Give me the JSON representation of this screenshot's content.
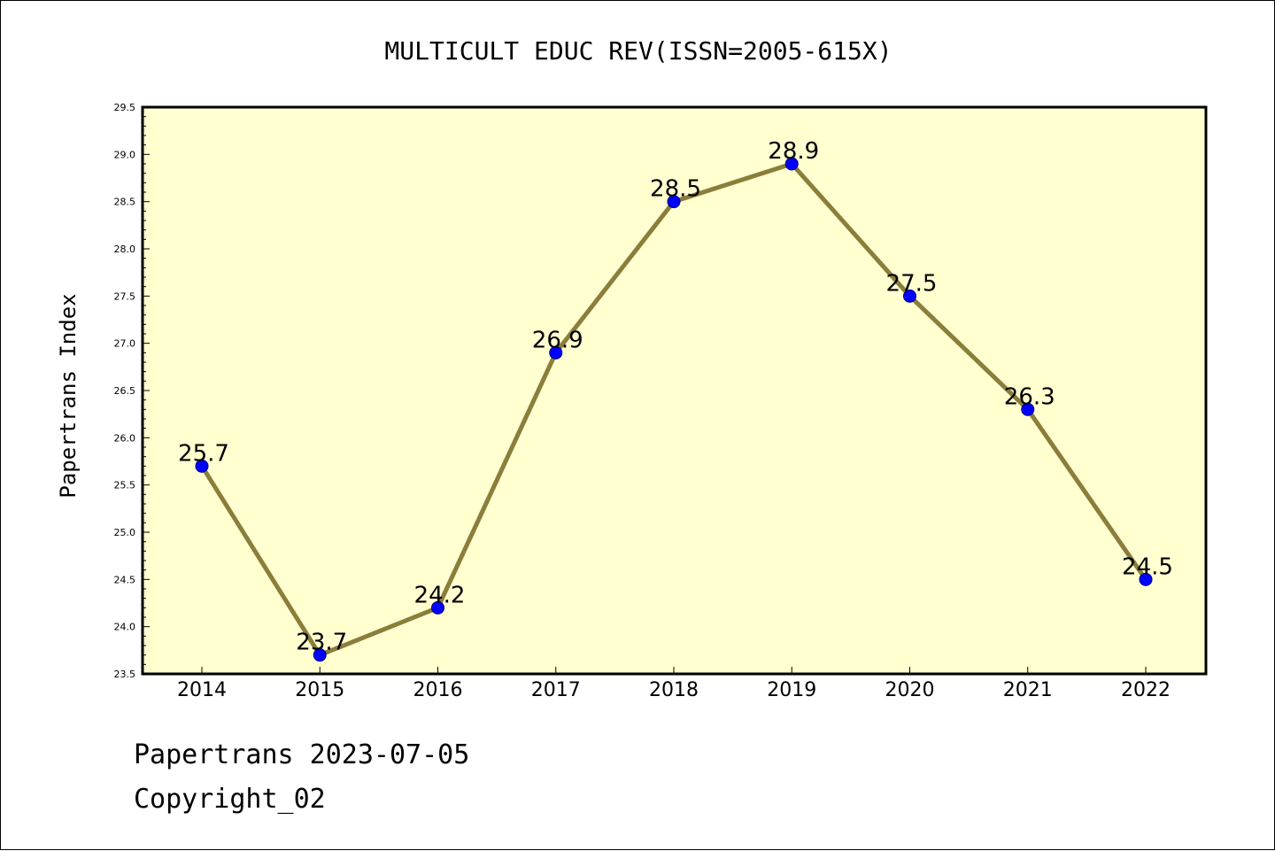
{
  "footer": {
    "brand_date": "Papertrans 2023-07-05",
    "copyright": "Copyright_02"
  },
  "chart_data": {
    "type": "line",
    "title": "MULTICULT EDUC REV(ISSN=2005-615X)",
    "xlabel": "",
    "ylabel": "Papertrans Index",
    "categories": [
      "2014",
      "2015",
      "2016",
      "2017",
      "2018",
      "2019",
      "2020",
      "2021",
      "2022"
    ],
    "series": [
      {
        "values": [
          25.7,
          23.7,
          24.2,
          26.9,
          28.5,
          28.9,
          27.5,
          26.3,
          24.5
        ],
        "data_labels": [
          "25.7",
          "23.7",
          "24.2",
          "26.9",
          "28.5",
          "28.9",
          "27.5",
          "26.3",
          "24.5"
        ]
      }
    ],
    "ylim": [
      23.5,
      29.5
    ],
    "yticks": [
      "23.5",
      "24.0",
      "24.5",
      "25.0",
      "25.5",
      "26.0",
      "26.5",
      "27.0",
      "27.5",
      "28.0",
      "28.5",
      "29.0",
      "29.5"
    ],
    "grid": false,
    "legend": "none",
    "colors": {
      "plot_background": "#ffffd0",
      "line": "#8b7d3a",
      "marker_fill": "#0000ff",
      "marker_edge": "#000080",
      "axis": "#000000"
    }
  }
}
